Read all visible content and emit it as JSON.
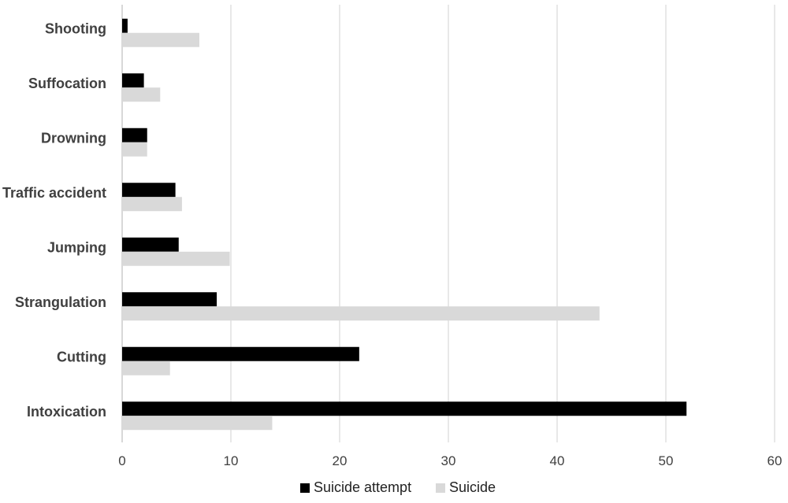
{
  "chart_data": {
    "type": "bar",
    "orientation": "horizontal",
    "categories": [
      "Shooting",
      "Suffocation",
      "Drowning",
      "Traffic accident",
      "Jumping",
      "Strangulation",
      "Cutting",
      "Intoxication"
    ],
    "series": [
      {
        "name": "Suicide attempt",
        "color": "#000000",
        "values": [
          0.5,
          2.0,
          2.3,
          4.9,
          5.2,
          8.7,
          21.8,
          51.9
        ]
      },
      {
        "name": "Suicide",
        "color": "#d9d9d9",
        "values": [
          7.1,
          3.5,
          2.3,
          5.5,
          9.9,
          43.9,
          4.4,
          13.8
        ]
      }
    ],
    "x_ticks": [
      "0",
      "10",
      "20",
      "30",
      "40",
      "50",
      "60"
    ],
    "xlim": [
      0,
      60
    ],
    "grid": "vertical",
    "legend": "bottom-center",
    "title": "",
    "xlabel": "",
    "ylabel": ""
  }
}
